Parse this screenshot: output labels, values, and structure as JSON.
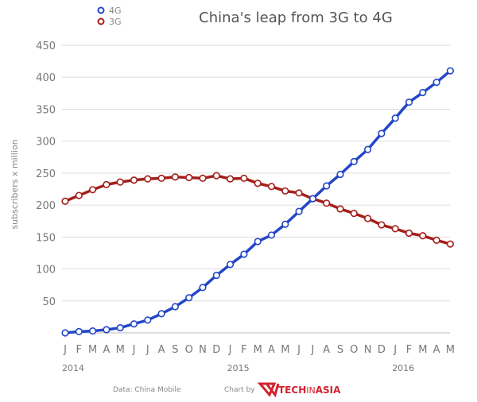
{
  "chart_data": {
    "type": "line",
    "title": "China's leap from 3G to 4G",
    "ylabel": "subscribers x million",
    "xlabel": "",
    "ylim": [
      0,
      450
    ],
    "yticks": [
      50,
      100,
      150,
      200,
      250,
      300,
      350,
      400,
      450
    ],
    "grid": true,
    "legend_position": "top-left",
    "x_month_labels": [
      "J",
      "F",
      "M",
      "A",
      "M",
      "J",
      "J",
      "A",
      "S",
      "O",
      "N",
      "D",
      "J",
      "F",
      "M",
      "A",
      "M",
      "J",
      "J",
      "A",
      "S",
      "O",
      "N",
      "D",
      "J",
      "F",
      "M",
      "A",
      "M"
    ],
    "x_year_labels": [
      {
        "label": "2014",
        "index": 0
      },
      {
        "label": "2015",
        "index": 12
      },
      {
        "label": "2016",
        "index": 24
      }
    ],
    "series": [
      {
        "name": "4G",
        "color": "#2346c8",
        "values": [
          0,
          2,
          3,
          5,
          8,
          14,
          20,
          30,
          41,
          55,
          71,
          90,
          107,
          123,
          143,
          153,
          170,
          190,
          210,
          230,
          248,
          268,
          287,
          312,
          336,
          361,
          376,
          392,
          410
        ]
      },
      {
        "name": "3G",
        "color": "#a31f1a",
        "values": [
          206,
          215,
          224,
          232,
          236,
          239,
          241,
          242,
          244,
          243,
          242,
          246,
          241,
          242,
          234,
          229,
          222,
          219,
          210,
          203,
          194,
          187,
          179,
          169,
          163,
          156,
          152,
          145,
          139
        ]
      }
    ]
  },
  "footer": {
    "source": "Data: China Mobile",
    "credit_prefix": "Chart by",
    "logo_text_1": "TECH",
    "logo_text_2": "IN",
    "logo_text_3": "ASIA"
  }
}
